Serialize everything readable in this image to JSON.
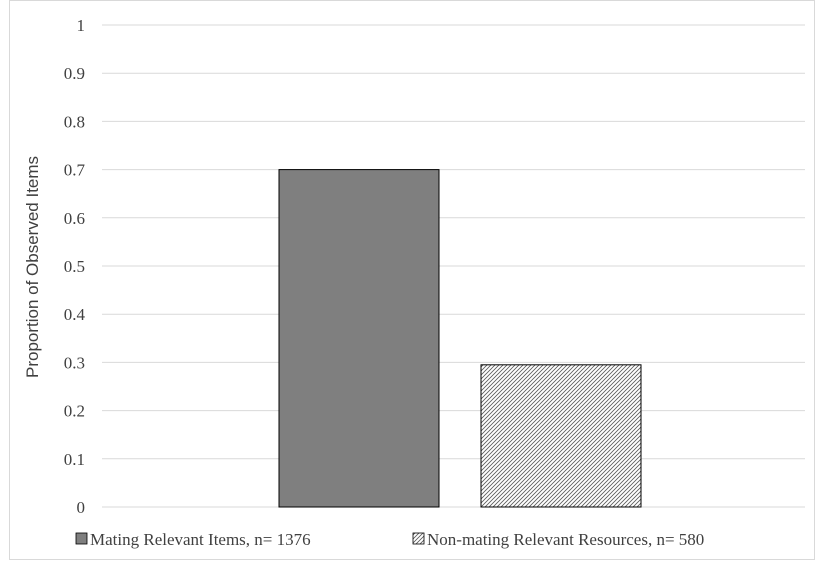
{
  "chart_data": {
    "type": "bar",
    "categories": [
      "Mating Relevant Items, n= 1376",
      "Non-mating Relevant Resources, n= 580"
    ],
    "values": [
      0.7,
      0.295
    ],
    "ylabel": "Proportion of Observed Items",
    "xlabel": "",
    "ylim": [
      0,
      1
    ],
    "yticks": [
      "0",
      "0.1",
      "0.2",
      "0.3",
      "0.4",
      "0.5",
      "0.6",
      "0.7",
      "0.8",
      "0.9",
      "1"
    ],
    "grid": true,
    "legend_position": "bottom",
    "series_colors": [
      "#7f7f7f",
      "#ffffff"
    ],
    "series_patterns": [
      "solid",
      "diagonal-hatch"
    ]
  }
}
